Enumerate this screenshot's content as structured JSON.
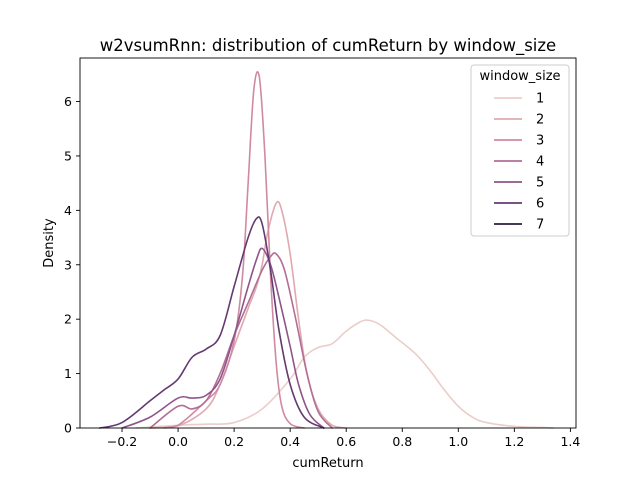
{
  "chart_data": {
    "type": "line",
    "title": "w2vsumRnn: distribution of cumReturn by window_size",
    "xlabel": "cumReturn",
    "ylabel": "Density",
    "xlim": [
      -0.35,
      1.42
    ],
    "ylim": [
      0,
      6.8
    ],
    "xticks": [
      -0.2,
      0.0,
      0.2,
      0.4,
      0.6,
      0.8,
      1.0,
      1.2,
      1.4
    ],
    "xtick_labels": [
      "−0.2",
      "0.0",
      "0.2",
      "0.4",
      "0.6",
      "0.8",
      "1.0",
      "1.2",
      "1.4"
    ],
    "yticks": [
      0,
      1,
      2,
      3,
      4,
      5,
      6
    ],
    "ytick_labels": [
      "0",
      "1",
      "2",
      "3",
      "4",
      "5",
      "6"
    ],
    "grid": false,
    "legend": {
      "title": "window_size",
      "placement": "top-right"
    },
    "series": [
      {
        "name": "1",
        "color": "#ebcdc9",
        "x": [
          -0.15,
          0.0,
          0.1,
          0.2,
          0.3,
          0.4,
          0.45,
          0.5,
          0.55,
          0.6,
          0.65,
          0.68,
          0.72,
          0.78,
          0.85,
          0.9,
          0.95,
          1.0,
          1.05,
          1.1,
          1.2,
          1.3,
          1.34
        ],
        "y": [
          0,
          0.05,
          0.07,
          0.1,
          0.35,
          0.9,
          1.3,
          1.48,
          1.55,
          1.78,
          1.95,
          1.98,
          1.9,
          1.65,
          1.35,
          1.05,
          0.7,
          0.4,
          0.2,
          0.1,
          0.03,
          0.01,
          0
        ]
      },
      {
        "name": "2",
        "color": "#dfa9b0",
        "x": [
          -0.1,
          0.0,
          0.1,
          0.15,
          0.2,
          0.25,
          0.28,
          0.3,
          0.32,
          0.35,
          0.37,
          0.4,
          0.43,
          0.46,
          0.5,
          0.55,
          0.6
        ],
        "y": [
          0,
          0.04,
          0.35,
          0.8,
          1.5,
          2.2,
          2.6,
          3.0,
          3.6,
          4.13,
          4.0,
          3.2,
          2.0,
          1.0,
          0.35,
          0.05,
          0
        ]
      },
      {
        "name": "3",
        "color": "#cf8aa1",
        "x": [
          -0.05,
          0.0,
          0.1,
          0.15,
          0.2,
          0.23,
          0.25,
          0.27,
          0.29,
          0.31,
          0.33,
          0.35,
          0.37,
          0.4,
          0.45
        ],
        "y": [
          0,
          0.05,
          0.5,
          0.8,
          1.6,
          2.8,
          4.5,
          6.2,
          6.45,
          5.0,
          2.8,
          1.2,
          0.4,
          0.08,
          0
        ]
      },
      {
        "name": "4",
        "color": "#b36e96",
        "x": [
          -0.1,
          0.0,
          0.05,
          0.1,
          0.15,
          0.2,
          0.25,
          0.3,
          0.33,
          0.35,
          0.38,
          0.42,
          0.46,
          0.5,
          0.55
        ],
        "y": [
          0,
          0.4,
          0.35,
          0.5,
          1.0,
          1.7,
          2.3,
          2.9,
          3.15,
          3.2,
          2.9,
          2.0,
          1.0,
          0.3,
          0
        ]
      },
      {
        "name": "5",
        "color": "#8f548a",
        "x": [
          -0.2,
          -0.1,
          0.0,
          0.05,
          0.1,
          0.15,
          0.2,
          0.25,
          0.28,
          0.3,
          0.33,
          0.36,
          0.4,
          0.43,
          0.47,
          0.52
        ],
        "y": [
          0,
          0.2,
          0.55,
          0.55,
          0.6,
          0.9,
          1.7,
          2.6,
          3.1,
          3.3,
          3.0,
          2.4,
          1.5,
          0.8,
          0.25,
          0
        ]
      },
      {
        "name": "6",
        "color": "#643a71",
        "x": [
          -0.28,
          -0.2,
          -0.1,
          -0.05,
          0.0,
          0.05,
          0.1,
          0.15,
          0.2,
          0.25,
          0.28,
          0.3,
          0.33,
          0.36,
          0.4,
          0.45,
          0.52
        ],
        "y": [
          0,
          0.1,
          0.5,
          0.7,
          0.9,
          1.3,
          1.45,
          1.7,
          2.6,
          3.5,
          3.85,
          3.75,
          2.9,
          1.8,
          0.8,
          0.2,
          0
        ]
      },
      {
        "name": "7",
        "color": "#2d1e3e",
        "x": [],
        "y": []
      }
    ]
  }
}
